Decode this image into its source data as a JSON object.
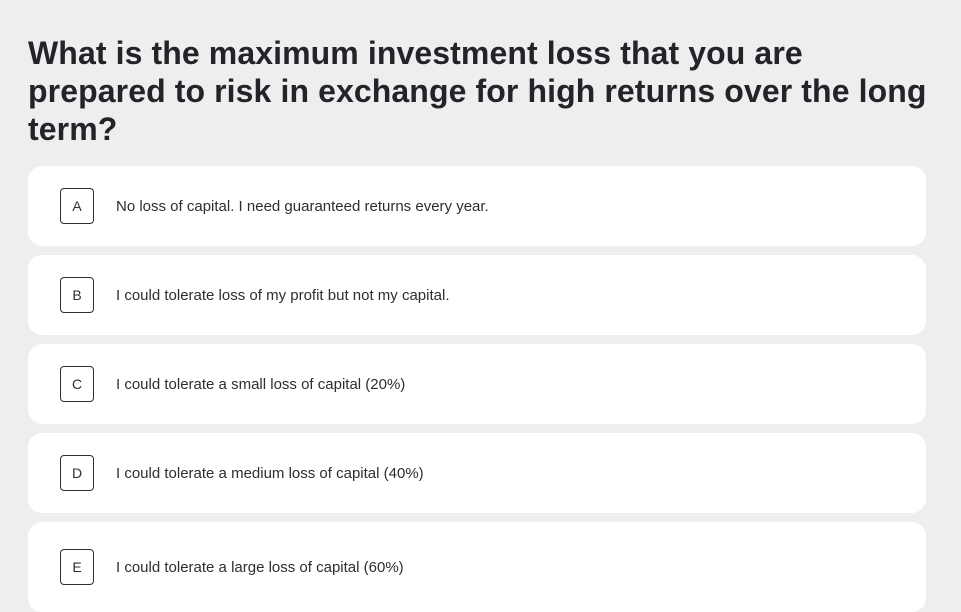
{
  "question": {
    "title": "What is the maximum investment loss that you are prepared to risk in exchange for high returns over the long term?"
  },
  "options": [
    {
      "key": "A",
      "label": "No loss of capital. I need guaranteed returns every year."
    },
    {
      "key": "B",
      "label": "I could tolerate loss of my profit but not my capital."
    },
    {
      "key": "C",
      "label": "I could tolerate a small loss of capital (20%)"
    },
    {
      "key": "D",
      "label": "I could tolerate a medium loss of capital (40%)"
    },
    {
      "key": "E",
      "label": "I could tolerate a large loss of capital (60%)"
    }
  ],
  "colors": {
    "background": "#eeeeef",
    "card": "#ffffff",
    "text": "#222429",
    "key_border": "#2c2f35"
  }
}
